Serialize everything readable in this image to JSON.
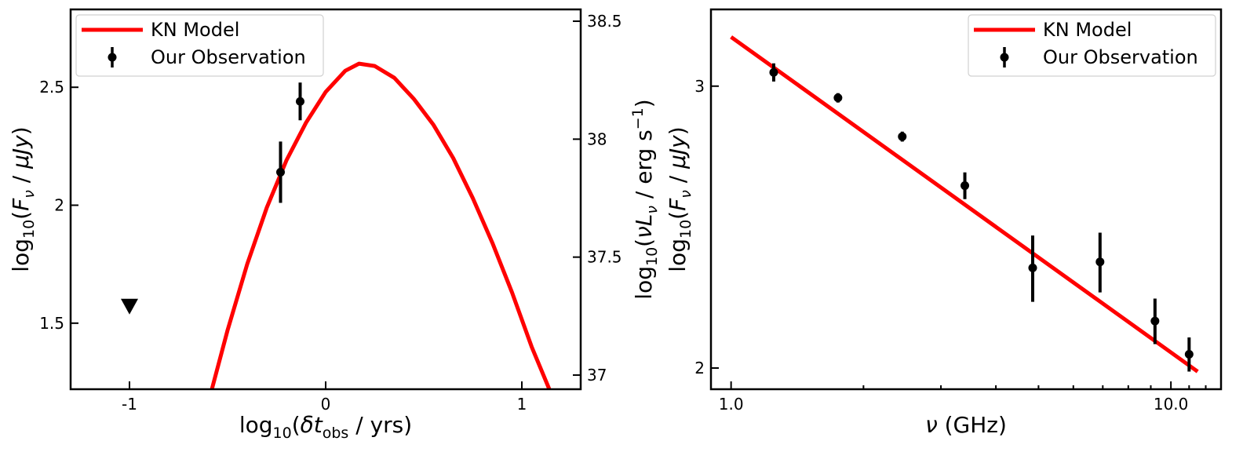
{
  "chart_data": [
    {
      "type": "line",
      "panel": "left",
      "xlabel": "log10(δt_obs / yrs)",
      "ylabel": "log10(F_ν / μJy)",
      "y2label": "log10(νL_ν / erg s^-1)",
      "xlim": [
        -1.3,
        1.3
      ],
      "ylim": [
        1.22,
        2.83
      ],
      "y2lim": [
        36.94,
        38.55
      ],
      "xticks": [
        -1,
        0,
        1
      ],
      "xtick_labels": [
        "-1",
        "0",
        "1"
      ],
      "yticks": [
        1.5,
        2,
        2.5
      ],
      "ytick_labels": [
        "1.5",
        "2",
        "2.5"
      ],
      "y2ticks": [
        37,
        37.5,
        38,
        38.5
      ],
      "y2tick_labels": [
        "37",
        "37.5",
        "38",
        "38.5"
      ],
      "grid": false,
      "legend_position": "top-left",
      "series": [
        {
          "name": "KN Model",
          "kind": "line",
          "color": "#ff0000",
          "x": [
            -0.58,
            -0.5,
            -0.4,
            -0.3,
            -0.2,
            -0.1,
            0.0,
            0.1,
            0.17,
            0.25,
            0.35,
            0.45,
            0.55,
            0.65,
            0.75,
            0.85,
            0.95,
            1.05,
            1.14
          ],
          "y": [
            1.22,
            1.47,
            1.75,
            1.99,
            2.19,
            2.35,
            2.48,
            2.57,
            2.6,
            2.59,
            2.54,
            2.45,
            2.34,
            2.2,
            2.03,
            1.84,
            1.63,
            1.4,
            1.22
          ]
        },
        {
          "name": "Our Observation",
          "kind": "errorbar",
          "color": "#000000",
          "x": [
            -0.23,
            -0.13
          ],
          "y": [
            2.14,
            2.44
          ],
          "yerr": [
            0.13,
            0.08
          ]
        },
        {
          "kind": "upper_limit",
          "color": "#000000",
          "x": [
            -1.0
          ],
          "y": [
            1.57
          ]
        }
      ]
    },
    {
      "type": "line",
      "panel": "right",
      "xlabel": "ν (GHz)",
      "ylabel": "log10(F_ν / μJy)",
      "xscale": "log",
      "yscale": "log",
      "xlim": [
        0.9,
        13.0
      ],
      "ylim": [
        1.94,
        3.35
      ],
      "xticks": [
        1.0,
        10.0
      ],
      "xtick_labels": [
        "1.0",
        "10.0"
      ],
      "yticks": [
        2,
        3
      ],
      "ytick_labels": [
        "2",
        "3"
      ],
      "grid": false,
      "legend_position": "top-right",
      "series": [
        {
          "name": "KN Model",
          "kind": "line",
          "color": "#ff0000",
          "x": [
            1.0,
            11.5
          ],
          "y": [
            3.22,
            1.99
          ]
        },
        {
          "name": "Our Observation",
          "kind": "errorbar",
          "color": "#000000",
          "x": [
            1.25,
            1.75,
            2.45,
            3.4,
            4.85,
            6.9,
            9.2,
            11.0
          ],
          "y": [
            3.06,
            2.95,
            2.79,
            2.6,
            2.31,
            2.33,
            2.14,
            2.04
          ],
          "yerr": [
            0.04,
            0.02,
            0.02,
            0.05,
            0.11,
            0.1,
            0.07,
            0.05
          ]
        }
      ]
    }
  ],
  "colors": {
    "model": "#ff0000",
    "observation": "#000000"
  }
}
